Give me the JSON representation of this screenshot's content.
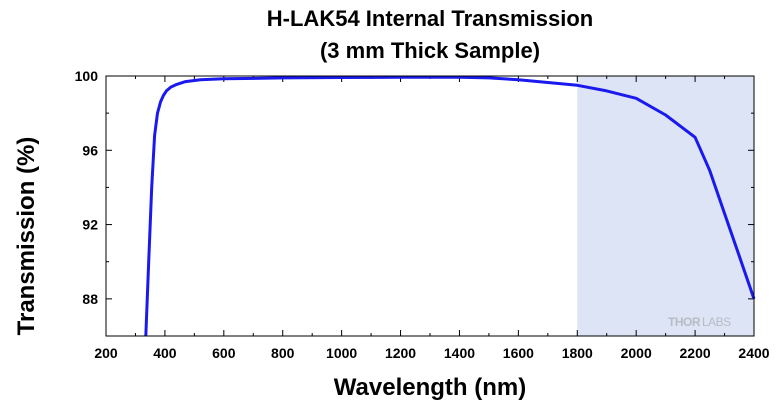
{
  "chart_data": {
    "type": "line",
    "title": "H-LAK54 Internal Transmission",
    "subtitle": "(3 mm Thick Sample)",
    "xlabel": "Wavelength (nm)",
    "ylabel": "Transmission (%)",
    "xlim": [
      200,
      2400
    ],
    "ylim": [
      86,
      100
    ],
    "xticks": [
      200,
      400,
      600,
      800,
      1000,
      1200,
      1400,
      1600,
      1800,
      2000,
      2200,
      2400
    ],
    "yticks": [
      88,
      92,
      96,
      100
    ],
    "shaded_region": {
      "x": [
        1800,
        2400
      ],
      "color": "#dce4f5"
    },
    "series": [
      {
        "color": "#1a1aee",
        "x": [
          335,
          345,
          355,
          365,
          375,
          385,
          395,
          405,
          420,
          440,
          470,
          520,
          600,
          800,
          1000,
          1200,
          1400,
          1500,
          1600,
          1700,
          1800,
          1900,
          2000,
          2100,
          2200,
          2250,
          2300,
          2350,
          2400
        ],
        "y": [
          86,
          90,
          94,
          96.8,
          98.0,
          98.6,
          98.95,
          99.2,
          99.4,
          99.55,
          99.7,
          99.8,
          99.85,
          99.9,
          99.92,
          99.93,
          99.93,
          99.9,
          99.8,
          99.65,
          99.5,
          99.2,
          98.8,
          97.9,
          96.7,
          94.9,
          92.6,
          90.3,
          88.0
        ]
      }
    ],
    "grid": false,
    "legend": "none"
  },
  "watermark": {
    "part1": "THOR",
    "part2": "LABS"
  }
}
